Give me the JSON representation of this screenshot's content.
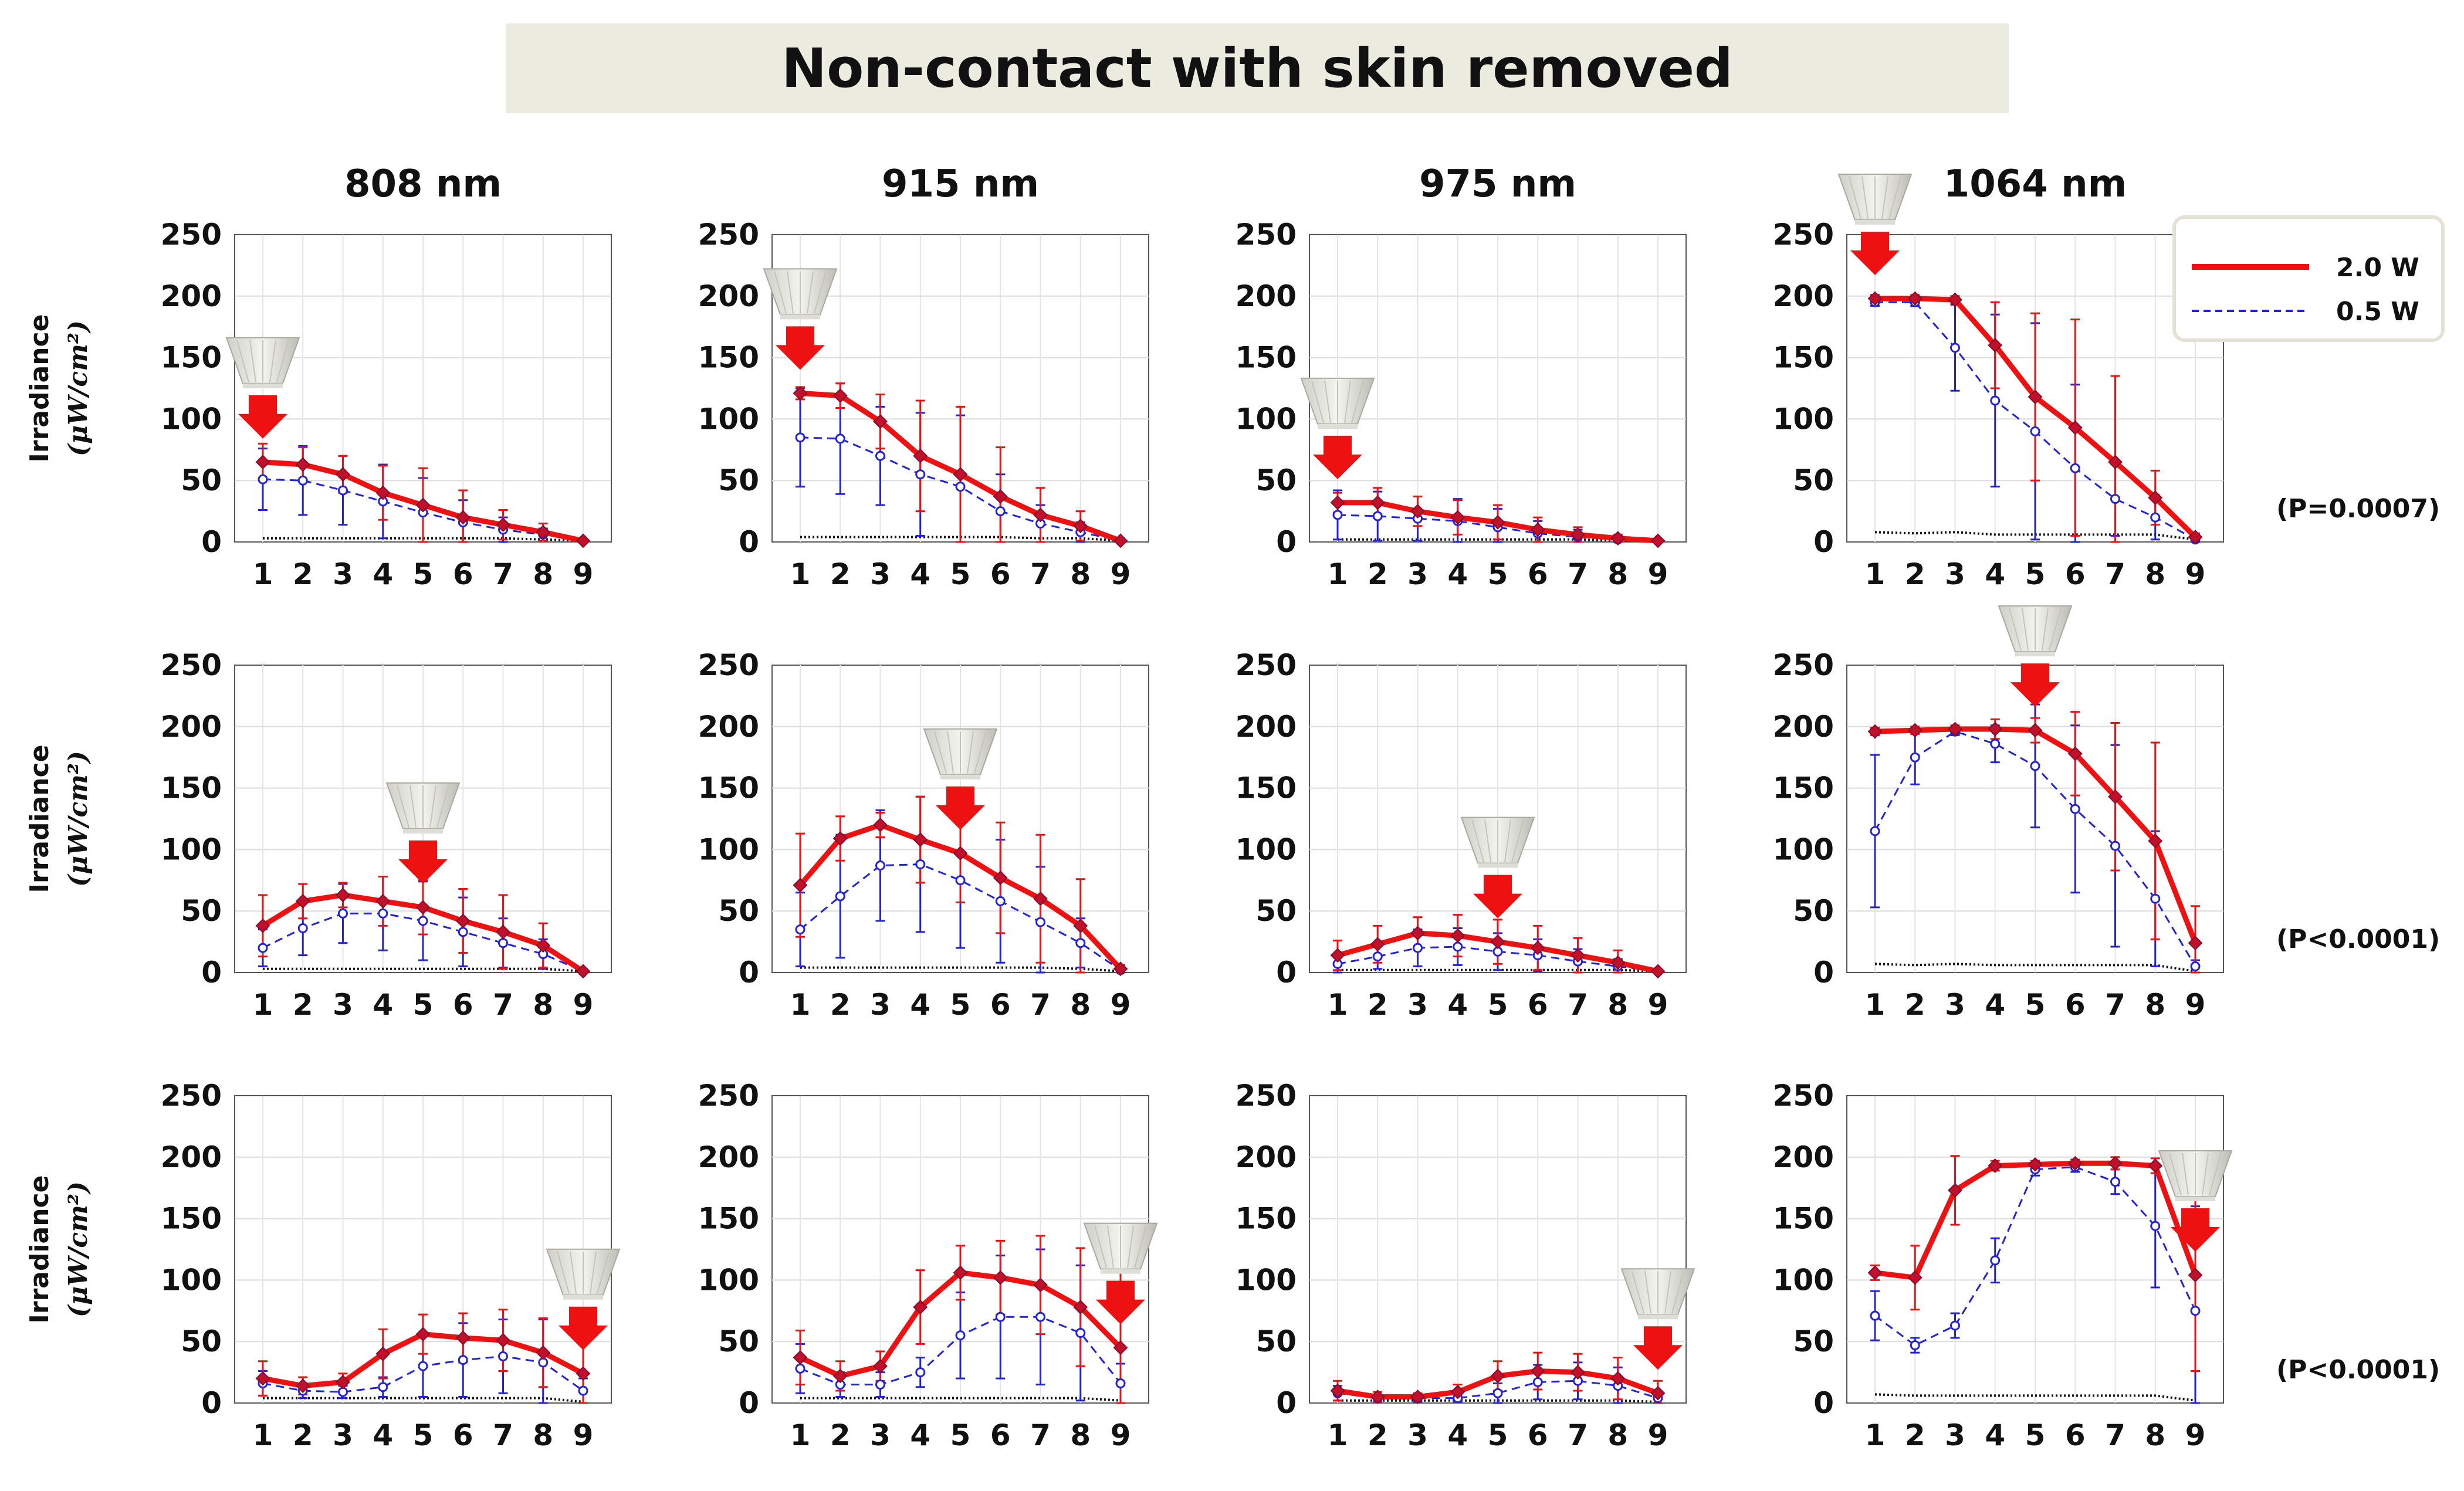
{
  "title": "Non-contact with skin removed",
  "wavelengths": [
    "808 nm",
    "915 nm",
    "975 nm",
    "1064 nm"
  ],
  "y_axis_label": "Irradiance",
  "y_axis_unit": "(μW/cm²)",
  "legend": [
    {
      "label": "2.0 W",
      "color": "#ee1111",
      "style": "solid"
    },
    {
      "label": "0.5 W",
      "color": "#2222dd",
      "style": "dashed"
    }
  ],
  "p_values": [
    "(P=0.0007)",
    "(P<0.0001)",
    "(P<0.0001)"
  ],
  "icons": {
    "lamp": "lamp-icon",
    "arrow": "down-arrow-icon"
  },
  "chart_data": {
    "type": "line",
    "x": [
      1,
      2,
      3,
      4,
      5,
      6,
      7,
      8,
      9
    ],
    "ylim": [
      0,
      250
    ],
    "yticks": [
      0,
      50,
      100,
      150,
      200,
      250
    ],
    "grid": true,
    "legend_position": "top-right",
    "series_names": [
      "2.0 W",
      "0.5 W"
    ],
    "panels": [
      {
        "row": 1,
        "wavelength": "808 nm",
        "source_position": 1,
        "w20": [
          65,
          63,
          55,
          40,
          30,
          20,
          14,
          8,
          1
        ],
        "w20_err": [
          15,
          14,
          15,
          22,
          30,
          22,
          12,
          7,
          1
        ],
        "w05": [
          51,
          50,
          42,
          33,
          24,
          16,
          10,
          6,
          1
        ],
        "w05_err": [
          25,
          28,
          28,
          30,
          28,
          18,
          10,
          5,
          1
        ],
        "baseline": [
          3,
          3,
          3,
          3,
          3,
          3,
          3,
          2,
          1
        ]
      },
      {
        "row": 1,
        "wavelength": "915 nm",
        "source_position": 1,
        "w20": [
          121,
          119,
          98,
          70,
          55,
          37,
          22,
          13,
          1
        ],
        "w20_err": [
          5,
          10,
          22,
          45,
          55,
          40,
          22,
          12,
          1
        ],
        "w05": [
          85,
          84,
          70,
          55,
          45,
          25,
          15,
          8,
          1
        ],
        "w05_err": [
          40,
          45,
          40,
          50,
          58,
          30,
          15,
          8,
          1
        ],
        "baseline": [
          4,
          4,
          4,
          4,
          4,
          4,
          3,
          3,
          1
        ]
      },
      {
        "row": 1,
        "wavelength": "975 nm",
        "source_position": 1,
        "w20": [
          32,
          32,
          25,
          20,
          16,
          10,
          6,
          3,
          1
        ],
        "w20_err": [
          8,
          12,
          12,
          14,
          14,
          10,
          6,
          3,
          1
        ],
        "w05": [
          22,
          21,
          19,
          17,
          12,
          7,
          4,
          2,
          1
        ],
        "w05_err": [
          20,
          20,
          18,
          18,
          15,
          10,
          6,
          3,
          1
        ],
        "baseline": [
          2,
          2,
          2,
          2,
          2,
          2,
          2,
          1,
          1
        ]
      },
      {
        "row": 1,
        "wavelength": "1064 nm",
        "source_position": 1,
        "p_value": "(P=0.0007)",
        "w20": [
          198,
          198,
          197,
          160,
          118,
          93,
          65,
          36,
          4
        ],
        "w20_err": [
          3,
          3,
          3,
          35,
          68,
          88,
          70,
          22,
          3
        ],
        "w05": [
          195,
          195,
          158,
          115,
          90,
          60,
          35,
          20,
          2
        ],
        "w05_err": [
          3,
          3,
          35,
          70,
          88,
          68,
          30,
          18,
          2
        ],
        "baseline": [
          8,
          7,
          8,
          6,
          6,
          6,
          6,
          6,
          2
        ]
      },
      {
        "row": 2,
        "wavelength": "808 nm",
        "source_position": 5,
        "w20": [
          38,
          58,
          63,
          58,
          53,
          42,
          33,
          22,
          1
        ],
        "w20_err": [
          25,
          14,
          10,
          20,
          22,
          26,
          30,
          18,
          1
        ],
        "w05": [
          20,
          36,
          48,
          48,
          42,
          33,
          24,
          15,
          1
        ],
        "w05_err": [
          15,
          22,
          24,
          30,
          32,
          28,
          20,
          12,
          1
        ],
        "baseline": [
          3,
          3,
          3,
          3,
          3,
          3,
          3,
          3,
          1
        ]
      },
      {
        "row": 2,
        "wavelength": "915 nm",
        "source_position": 5,
        "w20": [
          71,
          109,
          120,
          108,
          97,
          77,
          60,
          38,
          3
        ],
        "w20_err": [
          42,
          18,
          10,
          35,
          40,
          45,
          52,
          38,
          3
        ],
        "w05": [
          35,
          62,
          87,
          88,
          75,
          58,
          41,
          24,
          2
        ],
        "w05_err": [
          30,
          50,
          45,
          55,
          55,
          50,
          45,
          20,
          2
        ],
        "baseline": [
          4,
          4,
          4,
          4,
          4,
          4,
          4,
          3,
          1
        ]
      },
      {
        "row": 2,
        "wavelength": "975 nm",
        "source_position": 5,
        "w20": [
          14,
          23,
          32,
          30,
          25,
          20,
          14,
          8,
          1
        ],
        "w20_err": [
          12,
          15,
          13,
          17,
          18,
          18,
          14,
          10,
          1
        ],
        "w05": [
          7,
          13,
          20,
          21,
          17,
          14,
          9,
          5,
          1
        ],
        "w05_err": [
          7,
          10,
          15,
          15,
          15,
          13,
          10,
          6,
          1
        ],
        "baseline": [
          2,
          2,
          2,
          2,
          2,
          2,
          2,
          2,
          1
        ]
      },
      {
        "row": 2,
        "wavelength": "1064 nm",
        "source_position": 5,
        "p_value": "(P<0.0001)",
        "w20": [
          196,
          197,
          198,
          198,
          197,
          178,
          143,
          107,
          24
        ],
        "w20_err": [
          3,
          3,
          3,
          8,
          10,
          34,
          60,
          80,
          30
        ],
        "w05": [
          115,
          175,
          196,
          186,
          168,
          133,
          103,
          60,
          5
        ],
        "w05_err": [
          62,
          22,
          3,
          15,
          50,
          68,
          82,
          55,
          5
        ],
        "baseline": [
          7,
          6,
          7,
          6,
          6,
          6,
          6,
          6,
          1
        ]
      },
      {
        "row": 3,
        "wavelength": "808 nm",
        "source_position": 9,
        "w20": [
          20,
          14,
          17,
          40,
          56,
          53,
          51,
          41,
          24
        ],
        "w20_err": [
          14,
          7,
          7,
          20,
          16,
          20,
          25,
          28,
          35
        ],
        "w05": [
          16,
          10,
          9,
          13,
          30,
          35,
          38,
          33,
          10
        ],
        "w05_err": [
          10,
          6,
          5,
          8,
          25,
          30,
          30,
          35,
          10
        ],
        "baseline": [
          4,
          4,
          4,
          4,
          4,
          4,
          4,
          4,
          1
        ]
      },
      {
        "row": 3,
        "wavelength": "915 nm",
        "source_position": 9,
        "w20": [
          37,
          22,
          30,
          78,
          106,
          102,
          96,
          78,
          45
        ],
        "w20_err": [
          22,
          12,
          12,
          30,
          22,
          30,
          40,
          48,
          65
        ],
        "w05": [
          28,
          15,
          15,
          25,
          55,
          70,
          70,
          57,
          16
        ],
        "w05_err": [
          20,
          10,
          10,
          12,
          35,
          50,
          55,
          55,
          16
        ],
        "baseline": [
          4,
          4,
          4,
          4,
          4,
          4,
          4,
          4,
          2
        ]
      },
      {
        "row": 3,
        "wavelength": "975 nm",
        "source_position": 9,
        "w20": [
          10,
          5,
          5,
          9,
          22,
          26,
          25,
          20,
          8
        ],
        "w20_err": [
          8,
          4,
          3,
          6,
          12,
          15,
          15,
          17,
          10
        ],
        "w05": [
          8,
          4,
          4,
          4,
          8,
          17,
          18,
          14,
          4
        ],
        "w05_err": [
          6,
          3,
          3,
          3,
          8,
          14,
          15,
          15,
          5
        ],
        "baseline": [
          2,
          2,
          2,
          2,
          2,
          2,
          2,
          2,
          1
        ]
      },
      {
        "row": 3,
        "wavelength": "1064 nm",
        "source_position": 9,
        "p_value": "(P<0.0001)",
        "w20": [
          106,
          102,
          173,
          193,
          194,
          195,
          195,
          193,
          104
        ],
        "w20_err": [
          6,
          26,
          28,
          4,
          3,
          3,
          5,
          6,
          78
        ],
        "w05": [
          71,
          47,
          63,
          116,
          190,
          192,
          180,
          144,
          75
        ],
        "w05_err": [
          20,
          6,
          10,
          18,
          5,
          4,
          10,
          50,
          85
        ],
        "baseline": [
          7,
          6,
          6,
          6,
          6,
          6,
          6,
          6,
          2
        ]
      }
    ]
  }
}
